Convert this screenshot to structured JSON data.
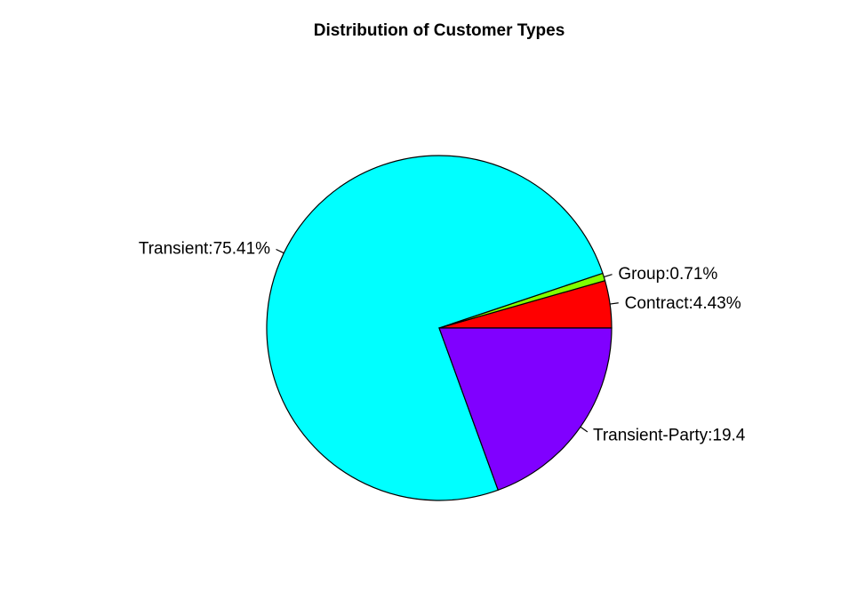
{
  "chart_data": {
    "type": "pie",
    "title": "Distribution of Customer Types",
    "slices": [
      {
        "name": "Contract",
        "value": 4.43,
        "label": "Contract:4.43%",
        "color": "#FF0000"
      },
      {
        "name": "Group",
        "value": 0.71,
        "label": "Group:0.71%",
        "color": "#80FF00"
      },
      {
        "name": "Transient",
        "value": 75.41,
        "label": "Transient:75.41%",
        "color": "#00FFFF"
      },
      {
        "name": "Transient-Party",
        "value": 19.45,
        "label": "Transient-Party:19.4",
        "color": "#8000FF"
      }
    ],
    "start_angle": "0 degrees (3 o'clock)",
    "direction": "counter-clockwise",
    "legend": "none"
  }
}
